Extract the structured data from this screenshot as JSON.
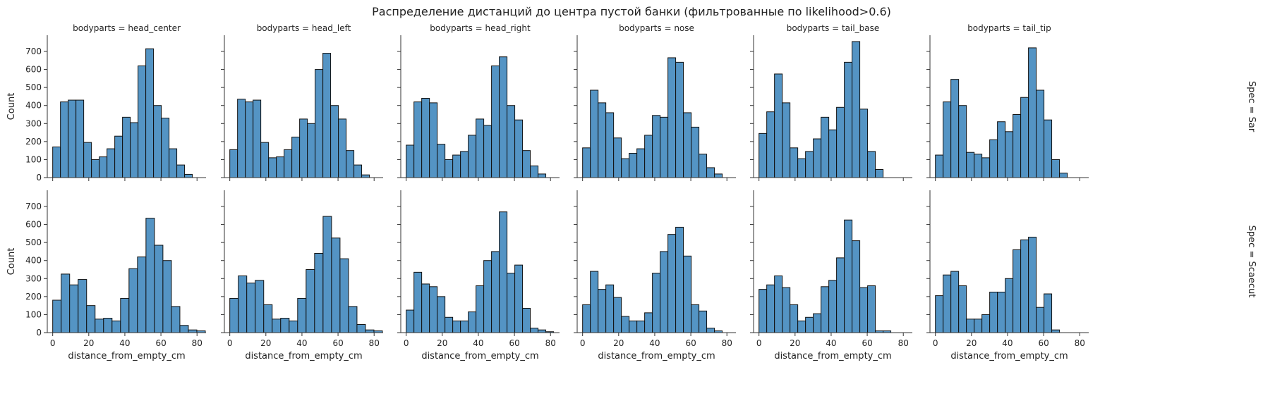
{
  "suptitle": "Распределение дистанций до центра пустой банки (фильтрованные по likelihood>0.6)",
  "colors": {
    "bar_fill": "#5494c4",
    "bar_edge": "#111111",
    "axis": "#333333"
  },
  "chart_data": {
    "type": "bar",
    "kind": "histogram-facet-grid",
    "xlabel": "distance_from_empty_cm",
    "ylabel": "Count",
    "xlim": [
      -3,
      85
    ],
    "ylim": [
      0,
      790
    ],
    "xticks": [
      0,
      20,
      40,
      60,
      80
    ],
    "yticks": [
      0,
      100,
      200,
      300,
      400,
      500,
      600,
      700
    ],
    "grid": false,
    "col_labels": [
      "bodyparts = head_center",
      "bodyparts = head_left",
      "bodyparts = head_right",
      "bodyparts = nose",
      "bodyparts = tail_base",
      "bodyparts = tail_tip"
    ],
    "row_labels": [
      "Spec = Sar",
      "Spec = Scaecut"
    ],
    "bins": [
      [
        0.0,
        4.3,
        8.6,
        12.9,
        17.2,
        21.5,
        25.8,
        30.1,
        34.4,
        38.7,
        43.0,
        47.3,
        51.6,
        55.9,
        60.2,
        64.5,
        68.8,
        73.1,
        77.4
      ],
      [
        0.0,
        4.7,
        9.4,
        14.1,
        18.8,
        23.5,
        28.2,
        32.9,
        37.6,
        42.3,
        47.0,
        51.7,
        56.4,
        61.1,
        65.8,
        70.5,
        75.2,
        79.9,
        84.6
      ],
      [
        0.0,
        4.3,
        8.6,
        12.9,
        17.2,
        21.5,
        25.8,
        30.1,
        34.4,
        38.7,
        43.0,
        47.3,
        51.6,
        55.9,
        60.2,
        64.5,
        68.8,
        73.1,
        77.4,
        81.7
      ],
      [
        0.0,
        4.3,
        8.6,
        12.9,
        17.2,
        21.5,
        25.8,
        30.1,
        34.4,
        38.7,
        43.0,
        47.3,
        51.6,
        55.9,
        60.2,
        64.5,
        68.8,
        73.1,
        77.4
      ]
    ],
    "panels": [
      {
        "row": 0,
        "col": 0,
        "bins_ref": 0,
        "counts": [
          170,
          420,
          430,
          430,
          195,
          100,
          115,
          160,
          230,
          335,
          305,
          620,
          715,
          400,
          330,
          160,
          70,
          18
        ]
      },
      {
        "row": 0,
        "col": 1,
        "bins_ref": 0,
        "counts": [
          155,
          435,
          420,
          430,
          195,
          110,
          115,
          155,
          225,
          325,
          300,
          600,
          690,
          400,
          325,
          150,
          70,
          15
        ]
      },
      {
        "row": 0,
        "col": 2,
        "bins_ref": 0,
        "counts": [
          180,
          420,
          440,
          415,
          185,
          100,
          125,
          145,
          235,
          325,
          290,
          620,
          670,
          400,
          320,
          150,
          65,
          20
        ]
      },
      {
        "row": 0,
        "col": 3,
        "bins_ref": 0,
        "counts": [
          165,
          485,
          415,
          360,
          220,
          105,
          135,
          160,
          235,
          345,
          335,
          665,
          640,
          360,
          280,
          130,
          55,
          20
        ]
      },
      {
        "row": 0,
        "col": 4,
        "bins_ref": 0,
        "counts": [
          245,
          365,
          575,
          415,
          165,
          105,
          145,
          215,
          335,
          265,
          390,
          640,
          755,
          380,
          145,
          45
        ]
      },
      {
        "row": 0,
        "col": 5,
        "bins_ref": 0,
        "counts": [
          125,
          420,
          545,
          400,
          140,
          130,
          110,
          210,
          310,
          255,
          350,
          445,
          720,
          485,
          320,
          100,
          25
        ]
      },
      {
        "row": 1,
        "col": 0,
        "bins_ref": 1,
        "counts": [
          180,
          325,
          265,
          295,
          150,
          75,
          80,
          65,
          190,
          355,
          420,
          635,
          485,
          400,
          145,
          40,
          15,
          10
        ]
      },
      {
        "row": 1,
        "col": 1,
        "bins_ref": 1,
        "counts": [
          190,
          315,
          275,
          290,
          155,
          75,
          80,
          65,
          190,
          350,
          440,
          645,
          525,
          410,
          145,
          45,
          15,
          10
        ]
      },
      {
        "row": 1,
        "col": 2,
        "bins_ref": 2,
        "counts": [
          125,
          335,
          270,
          255,
          200,
          85,
          65,
          65,
          115,
          260,
          400,
          450,
          670,
          330,
          375,
          135,
          25,
          15,
          5
        ]
      },
      {
        "row": 1,
        "col": 3,
        "bins_ref": 3,
        "counts": [
          155,
          340,
          240,
          265,
          195,
          90,
          65,
          65,
          110,
          330,
          450,
          545,
          585,
          425,
          155,
          120,
          25,
          10
        ]
      },
      {
        "row": 1,
        "col": 4,
        "bins_ref": 3,
        "counts": [
          240,
          265,
          315,
          250,
          155,
          65,
          85,
          105,
          255,
          290,
          415,
          625,
          510,
          250,
          260,
          10,
          10
        ]
      },
      {
        "row": 1,
        "col": 5,
        "bins_ref": 3,
        "counts": [
          205,
          320,
          340,
          260,
          75,
          75,
          100,
          225,
          225,
          300,
          460,
          515,
          530,
          140,
          215,
          15
        ]
      }
    ]
  }
}
